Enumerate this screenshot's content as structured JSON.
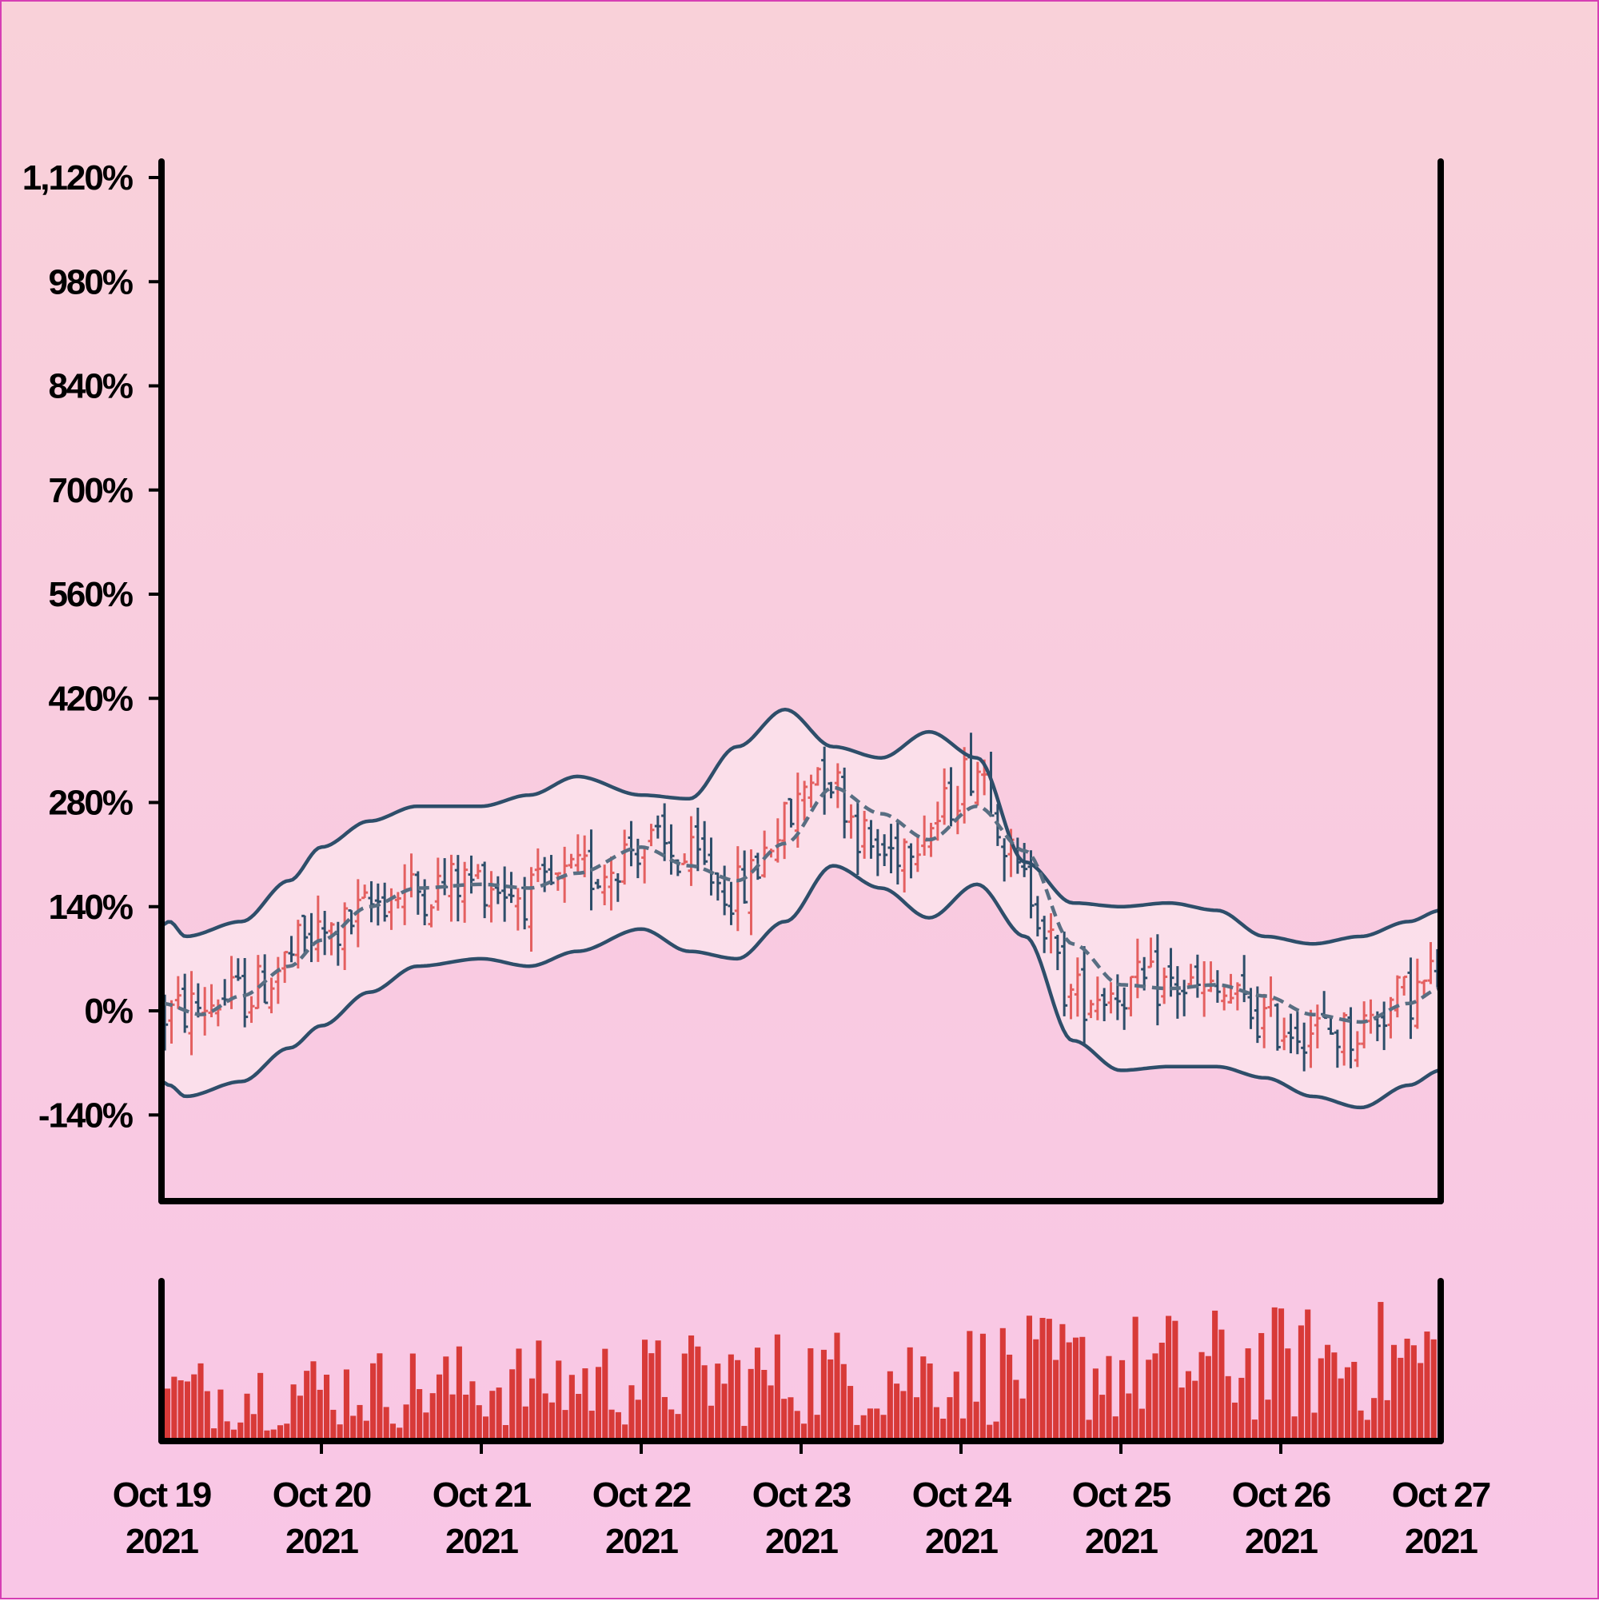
{
  "chart_data": {
    "type": "ohlc",
    "title": "",
    "xlabel": "",
    "ylabel": "",
    "y_unit": "%",
    "ylim": [
      -230,
      1140
    ],
    "y_ticks": [
      1120,
      980,
      840,
      700,
      560,
      420,
      280,
      140,
      0,
      -140
    ],
    "y_tick_labels": [
      "1,120%",
      "980%",
      "840%",
      "700%",
      "560%",
      "420%",
      "280%",
      "140%",
      "0%",
      "-140%"
    ],
    "x_range": [
      "2021-10-19",
      "2021-10-27"
    ],
    "x_ticks": [
      {
        "date": "2021-10-19",
        "line1": "Oct 19",
        "line2": "2021"
      },
      {
        "date": "2021-10-20",
        "line1": "Oct 20",
        "line2": "2021"
      },
      {
        "date": "2021-10-21",
        "line1": "Oct 21",
        "line2": "2021"
      },
      {
        "date": "2021-10-22",
        "line1": "Oct 22",
        "line2": "2021"
      },
      {
        "date": "2021-10-23",
        "line1": "Oct 23",
        "line2": "2021"
      },
      {
        "date": "2021-10-24",
        "line1": "Oct 24",
        "line2": "2021"
      },
      {
        "date": "2021-10-25",
        "line1": "Oct 25",
        "line2": "2021"
      },
      {
        "date": "2021-10-26",
        "line1": "Oct 26",
        "line2": "2021"
      },
      {
        "date": "2021-10-27",
        "line1": "Oct 27",
        "line2": "2021"
      }
    ],
    "bar_interval_hours": 1,
    "bar_count": 192,
    "price_trend": {
      "days": [
        0,
        0.5,
        1,
        1.5,
        2,
        2.3,
        2.7,
        3,
        3.3,
        3.6,
        3.9,
        4.1,
        4.5,
        4.8,
        5.1,
        5.4,
        5.7,
        6,
        6.3,
        6.6,
        7,
        7.4,
        7.8,
        8
      ],
      "value": [
        -5,
        20,
        100,
        160,
        175,
        155,
        185,
        225,
        200,
        160,
        250,
        330,
        210,
        250,
        330,
        170,
        20,
        30,
        35,
        20,
        -20,
        -30,
        20,
        50
      ]
    },
    "bollinger_middle": {
      "days": [
        0,
        0.25,
        0.5,
        0.8,
        1,
        1.3,
        1.6,
        2,
        2.3,
        2.6,
        3,
        3.3,
        3.6,
        3.9,
        4.2,
        4.5,
        4.8,
        5.1,
        5.4,
        5.7,
        6,
        6.3,
        6.6,
        6.9,
        7.2,
        7.5,
        7.8,
        8
      ],
      "value": [
        10,
        -5,
        20,
        60,
        95,
        140,
        165,
        170,
        165,
        185,
        220,
        195,
        175,
        225,
        300,
        265,
        230,
        275,
        215,
        90,
        35,
        30,
        35,
        20,
        -5,
        -15,
        10,
        30
      ]
    },
    "bollinger_upper": {
      "days": [
        0,
        0.05,
        0.15,
        0.5,
        0.8,
        1,
        1.3,
        1.6,
        2,
        2.3,
        2.6,
        3,
        3.3,
        3.6,
        3.9,
        4.2,
        4.5,
        4.8,
        5.1,
        5.4,
        5.7,
        6,
        6.3,
        6.6,
        6.9,
        7.2,
        7.5,
        7.8,
        8
      ],
      "value": [
        115,
        120,
        100,
        120,
        175,
        220,
        255,
        275,
        275,
        290,
        315,
        290,
        285,
        355,
        405,
        355,
        340,
        375,
        340,
        200,
        145,
        140,
        145,
        135,
        100,
        90,
        100,
        120,
        135
      ]
    },
    "bollinger_lower": {
      "days": [
        0,
        0.05,
        0.15,
        0.5,
        0.8,
        1,
        1.3,
        1.6,
        2,
        2.3,
        2.6,
        3,
        3.3,
        3.6,
        3.9,
        4.2,
        4.5,
        4.8,
        5.1,
        5.4,
        5.7,
        6,
        6.3,
        6.6,
        6.9,
        7.2,
        7.5,
        7.8,
        8
      ],
      "value": [
        -95,
        -100,
        -115,
        -95,
        -50,
        -20,
        25,
        60,
        70,
        60,
        80,
        110,
        80,
        70,
        120,
        195,
        165,
        125,
        170,
        100,
        -40,
        -80,
        -75,
        -75,
        -90,
        -115,
        -130,
        -100,
        -80
      ]
    },
    "volume": {
      "relative_scale": [
        0,
        1
      ],
      "description_level": [
        0.25,
        0.55,
        0.55,
        0.65,
        0.75
      ]
    },
    "colors": {
      "up_bar": "#e46060",
      "down_bar": "#2e4e6a",
      "band_line": "#2e4e6a",
      "band_fill": "#fbe6ee",
      "middle_line": "#586e82",
      "volume": "#d83a38",
      "axis": "#000000"
    },
    "grid": false,
    "legend": "none"
  }
}
